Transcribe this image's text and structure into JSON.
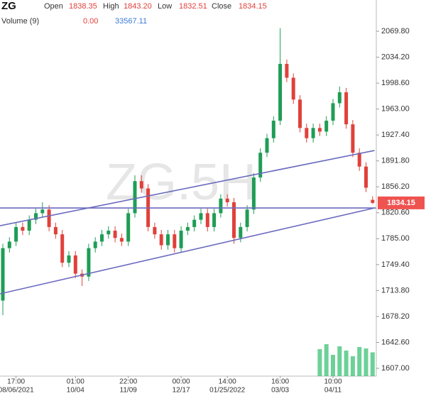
{
  "header": {
    "symbol": "ZG",
    "fields": [
      {
        "name": "Open",
        "label": "1838.35"
      },
      {
        "name": "High",
        "label": "1843.20"
      },
      {
        "name": "Low",
        "label": "1832.51"
      },
      {
        "name": "Close",
        "label": "1834.15"
      }
    ],
    "volume_name": "Volume (9)",
    "volume_values": [
      "0.00",
      "33567.11"
    ]
  },
  "chart_data": {
    "type": "candlestick",
    "watermark": "ZG.5H",
    "up_color": "#1f9d55",
    "down_color": "#e0413b",
    "line_color": "#6a6abf",
    "tag_color": "#ef5350",
    "volume_color": "#2ebd6b",
    "open": [
      1700,
      1772,
      1781,
      1801,
      1796,
      1811,
      1820,
      1825,
      1801,
      1791,
      1752,
      1762,
      1737,
      1733,
      1772,
      1781,
      1791,
      1796,
      1786,
      1781,
      1820,
      1864,
      1854,
      1801,
      1791,
      1776,
      1791,
      1772,
      1796,
      1801,
      1811,
      1820,
      1801,
      1820,
      1840,
      1835,
      1786,
      1801,
      1825,
      1869,
      1903,
      1923,
      1947,
      2025,
      2006,
      1976,
      1937,
      1923,
      1937,
      1932,
      1947,
      1971,
      1986,
      1942,
      1903,
      1884,
      1838.35
    ],
    "high": [
      1778,
      1787,
      1807,
      1807,
      1817,
      1826,
      1835,
      1831,
      1807,
      1797,
      1768,
      1768,
      1743,
      1778,
      1787,
      1797,
      1802,
      1802,
      1792,
      1826,
      1872,
      1872,
      1860,
      1807,
      1797,
      1797,
      1797,
      1802,
      1807,
      1817,
      1826,
      1826,
      1826,
      1846,
      1846,
      1841,
      1807,
      1831,
      1875,
      1909,
      1929,
      1953,
      2074,
      2031,
      2012,
      1982,
      1943,
      1943,
      1943,
      1953,
      1977,
      1994,
      1992,
      1948,
      1909,
      1890,
      1843.2
    ],
    "low": [
      1680,
      1766,
      1775,
      1790,
      1790,
      1805,
      1814,
      1795,
      1785,
      1746,
      1746,
      1731,
      1720,
      1727,
      1766,
      1775,
      1785,
      1780,
      1775,
      1775,
      1814,
      1848,
      1795,
      1785,
      1770,
      1770,
      1766,
      1766,
      1790,
      1795,
      1805,
      1795,
      1795,
      1814,
      1829,
      1778,
      1780,
      1795,
      1819,
      1863,
      1897,
      1917,
      1941,
      2000,
      1970,
      1931,
      1917,
      1917,
      1926,
      1926,
      1941,
      1965,
      1936,
      1897,
      1878,
      1849,
      1832.51
    ],
    "close": [
      1772,
      1781,
      1801,
      1796,
      1811,
      1820,
      1825,
      1801,
      1791,
      1752,
      1762,
      1737,
      1733,
      1772,
      1781,
      1791,
      1796,
      1786,
      1781,
      1820,
      1864,
      1854,
      1801,
      1791,
      1776,
      1791,
      1772,
      1796,
      1801,
      1811,
      1820,
      1801,
      1820,
      1840,
      1835,
      1786,
      1801,
      1825,
      1869,
      1903,
      1923,
      1947,
      2025,
      2006,
      1976,
      1937,
      1923,
      1937,
      1932,
      1947,
      1971,
      1986,
      1942,
      1903,
      1884,
      1855,
      1834.15
    ],
    "volume": [
      null,
      null,
      null,
      null,
      null,
      null,
      null,
      null,
      null,
      null,
      null,
      null,
      null,
      null,
      null,
      null,
      null,
      null,
      null,
      null,
      null,
      null,
      null,
      null,
      null,
      null,
      null,
      null,
      null,
      null,
      null,
      null,
      null,
      null,
      null,
      null,
      null,
      null,
      null,
      null,
      null,
      null,
      null,
      null,
      null,
      null,
      null,
      null,
      38000,
      45000,
      30000,
      42000,
      36000,
      28000,
      41000,
      39000,
      33567.11
    ],
    "vlim": [
      0,
      60000
    ],
    "xticks": [
      {
        "value": 2,
        "label": "17:00",
        "date": "08/06/2021"
      },
      {
        "value": 11,
        "label": "01:00",
        "date": "10/04"
      },
      {
        "value": 19,
        "label": "22:00",
        "date": "11/09"
      },
      {
        "value": 27,
        "label": "00:00",
        "date": "12/17"
      },
      {
        "value": 34,
        "label": "14:00",
        "date": "01/25/2022"
      },
      {
        "value": 42,
        "label": "16:00",
        "date": "03/03"
      },
      {
        "value": 50,
        "label": "10:00",
        "date": "04/11"
      }
    ],
    "ylim": [
      1596.3,
      2112.7
    ],
    "yticks": [
      {
        "value": 2069.8,
        "label": "2069.80"
      },
      {
        "value": 2034.2,
        "label": "2034.20"
      },
      {
        "value": 1998.6,
        "label": "1998.60"
      },
      {
        "value": 1963,
        "label": "1963.00"
      },
      {
        "value": 1927.4,
        "label": "1927.40"
      },
      {
        "value": 1891.8,
        "label": "1891.80"
      },
      {
        "value": 1856.2,
        "label": "1856.20"
      },
      {
        "value": 1820.6,
        "label": "1820.60"
      },
      {
        "value": 1785,
        "label": "1785.00"
      },
      {
        "value": 1749.4,
        "label": "1749.40"
      },
      {
        "value": 1713.8,
        "label": "1713.80"
      },
      {
        "value": 1678.2,
        "label": "1678.20"
      },
      {
        "value": 1642.6,
        "label": "1642.60"
      },
      {
        "value": 1607,
        "label": "1607.00"
      }
    ],
    "lines": [
      {
        "x": [
          -0.43,
          56.5
        ],
        "y": [
          1827.2,
          1827.2
        ]
      },
      {
        "x": [
          -0.43,
          56.3
        ],
        "y": [
          1802.8,
          1906.1
        ]
      },
      {
        "x": [
          -0.43,
          56.3
        ],
        "y": [
          1709.3,
          1827.2
        ]
      }
    ],
    "grid": false
  }
}
